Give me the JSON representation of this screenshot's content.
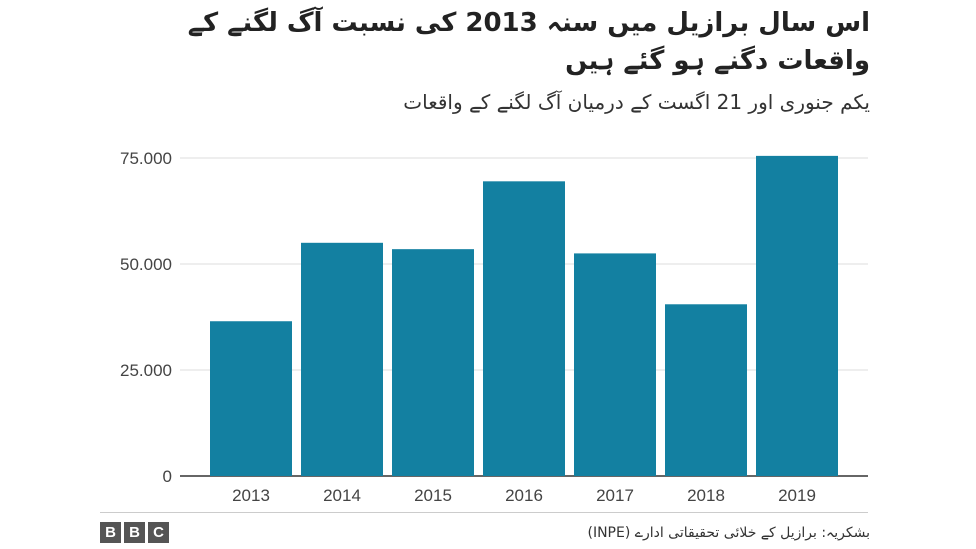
{
  "chart_data": {
    "type": "bar",
    "title": "اس سال برازیل میں سنہ 2013 کی نسبت آگ لگنے کے واقعات دگنے ہو گئے ہیں",
    "subtitle": "یکم جنوری اور 21 اگست کے درمیان آگ لگنے کے واقعات",
    "categories": [
      "2013",
      "2014",
      "2015",
      "2016",
      "2017",
      "2018",
      "2019"
    ],
    "values": [
      36500,
      55000,
      53500,
      69500,
      52500,
      40500,
      75500
    ],
    "ylim": [
      0,
      75000
    ],
    "yticks": [
      0,
      25000,
      50000,
      75000
    ],
    "ytick_labels": [
      "0",
      "25.000",
      "50.000",
      "75.000"
    ],
    "xlabel": "",
    "ylabel": "",
    "grid": true,
    "bar_color": "#1380a1",
    "grid_color": "#dddddd"
  },
  "footer": {
    "logo_letters": [
      "B",
      "B",
      "C"
    ],
    "source": "بشکریہ: برازیل کے خلائی تحقیقاتی ادارے (INPE)"
  }
}
